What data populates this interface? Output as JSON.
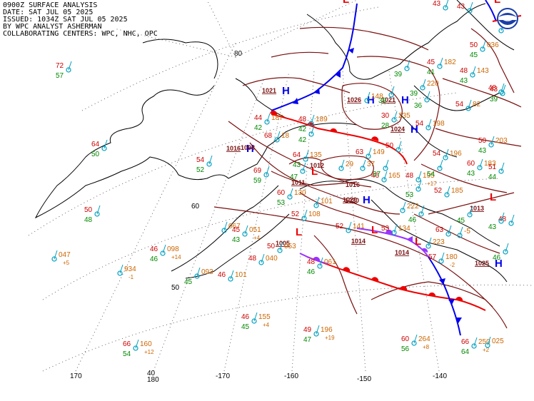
{
  "header": {
    "line1": "0900Z SURFACE ANALYSIS",
    "line2": "DATE: SAT JUL 05 2025",
    "line3": "ISSUED: 1034Z SAT JUL 05 2025",
    "line4": "BY WPC ANALYST ASHERMAN",
    "line5": "COLLABORATING CENTERS: WPC, NHC, OPC"
  },
  "logo": {
    "agency": "NOAA",
    "icon": "noaa-logo-icon"
  },
  "colors": {
    "temperature": "#cc0000",
    "dewpoint": "#008800",
    "pressure": "#cc6600",
    "station": "#00a0c0",
    "isobar": "#7a1010",
    "cold_front": "#0000ee",
    "warm_front": "#ee0000",
    "occluded_front": "#9933ff",
    "coast": "#000000",
    "grid": "#333333"
  },
  "grid_labels": {
    "lat": [
      "80",
      "60",
      "50",
      "40"
    ],
    "lon": [
      "170",
      "180",
      "-170",
      "-160",
      "-150",
      "-140"
    ]
  },
  "pressure_centers": [
    {
      "type": "H",
      "value": "1021"
    },
    {
      "type": "H",
      "value": "1021"
    },
    {
      "type": "H",
      "value": "1026"
    },
    {
      "type": "H",
      "value": "1024"
    },
    {
      "type": "L",
      "value": "1011"
    },
    {
      "type": "H",
      "value": "1016"
    },
    {
      "type": "H",
      "value": "1020"
    },
    {
      "type": "L",
      "value": "1014"
    },
    {
      "type": "L",
      "value": "1014"
    },
    {
      "type": "L",
      "value": "1013"
    },
    {
      "type": "H",
      "value": "1025"
    },
    {
      "type": "L",
      "value": ""
    },
    {
      "type": "L",
      "value": ""
    },
    {
      "type": "L",
      "value": "1005"
    }
  ],
  "isobar_labels": [
    "1012",
    "1020",
    "1016",
    "1008"
  ],
  "stations": [
    {
      "t": "72",
      "d": "57",
      "p": ""
    },
    {
      "t": "64",
      "d": "50",
      "p": ""
    },
    {
      "t": "50",
      "d": "48",
      "p": ""
    },
    {
      "t": "",
      "d": "",
      "p": "047",
      "tend": "+5"
    },
    {
      "t": "",
      "d": "",
      "p": "934",
      "tend": "-1"
    },
    {
      "t": "46",
      "d": "46",
      "p": "098",
      "tend": "+14"
    },
    {
      "t": "",
      "d": "45",
      "p": "093"
    },
    {
      "t": "46",
      "d": "",
      "p": "101"
    },
    {
      "t": "66",
      "d": "54",
      "p": "160",
      "tend": "+12"
    },
    {
      "t": "54",
      "d": "52",
      "p": ""
    },
    {
      "t": "44",
      "d": "42",
      "p": "187"
    },
    {
      "t": "48",
      "d": "42",
      "p": "189"
    },
    {
      "t": "68",
      "d": "",
      "p": "18"
    },
    {
      "t": "69",
      "d": "59",
      "p": ""
    },
    {
      "t": "64",
      "d": "43",
      "p": "135"
    },
    {
      "t": "60",
      "d": "53",
      "p": "130"
    },
    {
      "t": "52",
      "d": "",
      "p": "108"
    },
    {
      "t": "",
      "d": "",
      "p": "067"
    },
    {
      "t": "45",
      "d": "43",
      "p": "051",
      "tend": "+4"
    },
    {
      "t": "50",
      "d": "",
      "p": "053"
    },
    {
      "t": "48",
      "d": "",
      "p": "040"
    },
    {
      "t": "48",
      "d": "46",
      "p": "061"
    },
    {
      "t": "46",
      "d": "45",
      "p": "155",
      "tend": "+4"
    },
    {
      "t": "49",
      "d": "47",
      "p": "196",
      "tend": "+19"
    },
    {
      "t": "60",
      "d": "56",
      "p": "264",
      "tend": "+8"
    },
    {
      "t": "66",
      "d": "64",
      "p": "250",
      "tend": "+2"
    },
    {
      "t": "52",
      "d": "",
      "p": "141"
    },
    {
      "t": "53",
      "d": "",
      "p": "134"
    },
    {
      "t": "57",
      "d": "",
      "p": "180",
      "tend": "-2"
    },
    {
      "t": "63",
      "d": "",
      "p": "149"
    },
    {
      "t": "50",
      "d": "",
      "p": ""
    },
    {
      "t": "46",
      "d": "",
      "p": "165"
    },
    {
      "t": "48",
      "d": "",
      "p": "195",
      "tend": "+17"
    },
    {
      "t": "52",
      "d": "",
      "p": "185"
    },
    {
      "t": "54",
      "d": "",
      "p": "196"
    },
    {
      "t": "30",
      "d": "28",
      "p": "235"
    },
    {
      "t": "54",
      "d": "",
      "p": "198"
    },
    {
      "t": "45",
      "d": "41",
      "p": "182"
    },
    {
      "t": "48",
      "d": "43",
      "p": "143"
    },
    {
      "t": "54",
      "d": "",
      "p": "82"
    },
    {
      "t": "50",
      "d": "43",
      "p": "203"
    },
    {
      "t": "60",
      "d": "43",
      "p": "183"
    },
    {
      "t": "51",
      "d": "44",
      "p": ""
    },
    {
      "t": "43",
      "d": "39",
      "p": ""
    },
    {
      "t": "43",
      "d": "",
      "p": ""
    },
    {
      "t": "50",
      "d": "45",
      "p": "036"
    },
    {
      "t": "48",
      "d": "",
      "p": ""
    },
    {
      "t": "48",
      "d": "",
      "p": ""
    },
    {
      "t": "43",
      "d": "",
      "p": ""
    },
    {
      "t": "",
      "d": "39",
      "p": "220"
    },
    {
      "t": "",
      "d": "36",
      "p": ""
    },
    {
      "t": "",
      "d": "39",
      "p": ""
    },
    {
      "t": "",
      "d": "38",
      "p": ""
    },
    {
      "t": "",
      "d": "",
      "p": "222"
    },
    {
      "t": "",
      "d": "",
      "p": "223"
    },
    {
      "t": "",
      "d": "45",
      "p": ""
    },
    {
      "t": "",
      "d": "43",
      "p": ""
    },
    {
      "t": "",
      "d": "46",
      "p": ""
    },
    {
      "t": "",
      "d": "46",
      "p": ""
    },
    {
      "t": "",
      "d": "54",
      "p": ""
    },
    {
      "t": "",
      "d": "53",
      "p": ""
    },
    {
      "t": "",
      "d": "42",
      "p": ""
    },
    {
      "t": "",
      "d": "47",
      "p": ""
    },
    {
      "t": "",
      "d": "",
      "p": "29"
    },
    {
      "t": "",
      "d": "",
      "p": "37"
    },
    {
      "t": "",
      "d": "37",
      "p": ""
    },
    {
      "t": "",
      "d": "",
      "p": "-5"
    },
    {
      "t": "63",
      "d": "",
      "p": ""
    },
    {
      "t": "",
      "d": "",
      "p": "148"
    },
    {
      "t": "",
      "d": "",
      "p": "101"
    },
    {
      "t": "",
      "d": "",
      "p": "27"
    },
    {
      "t": "",
      "d": "",
      "p": "025"
    }
  ]
}
